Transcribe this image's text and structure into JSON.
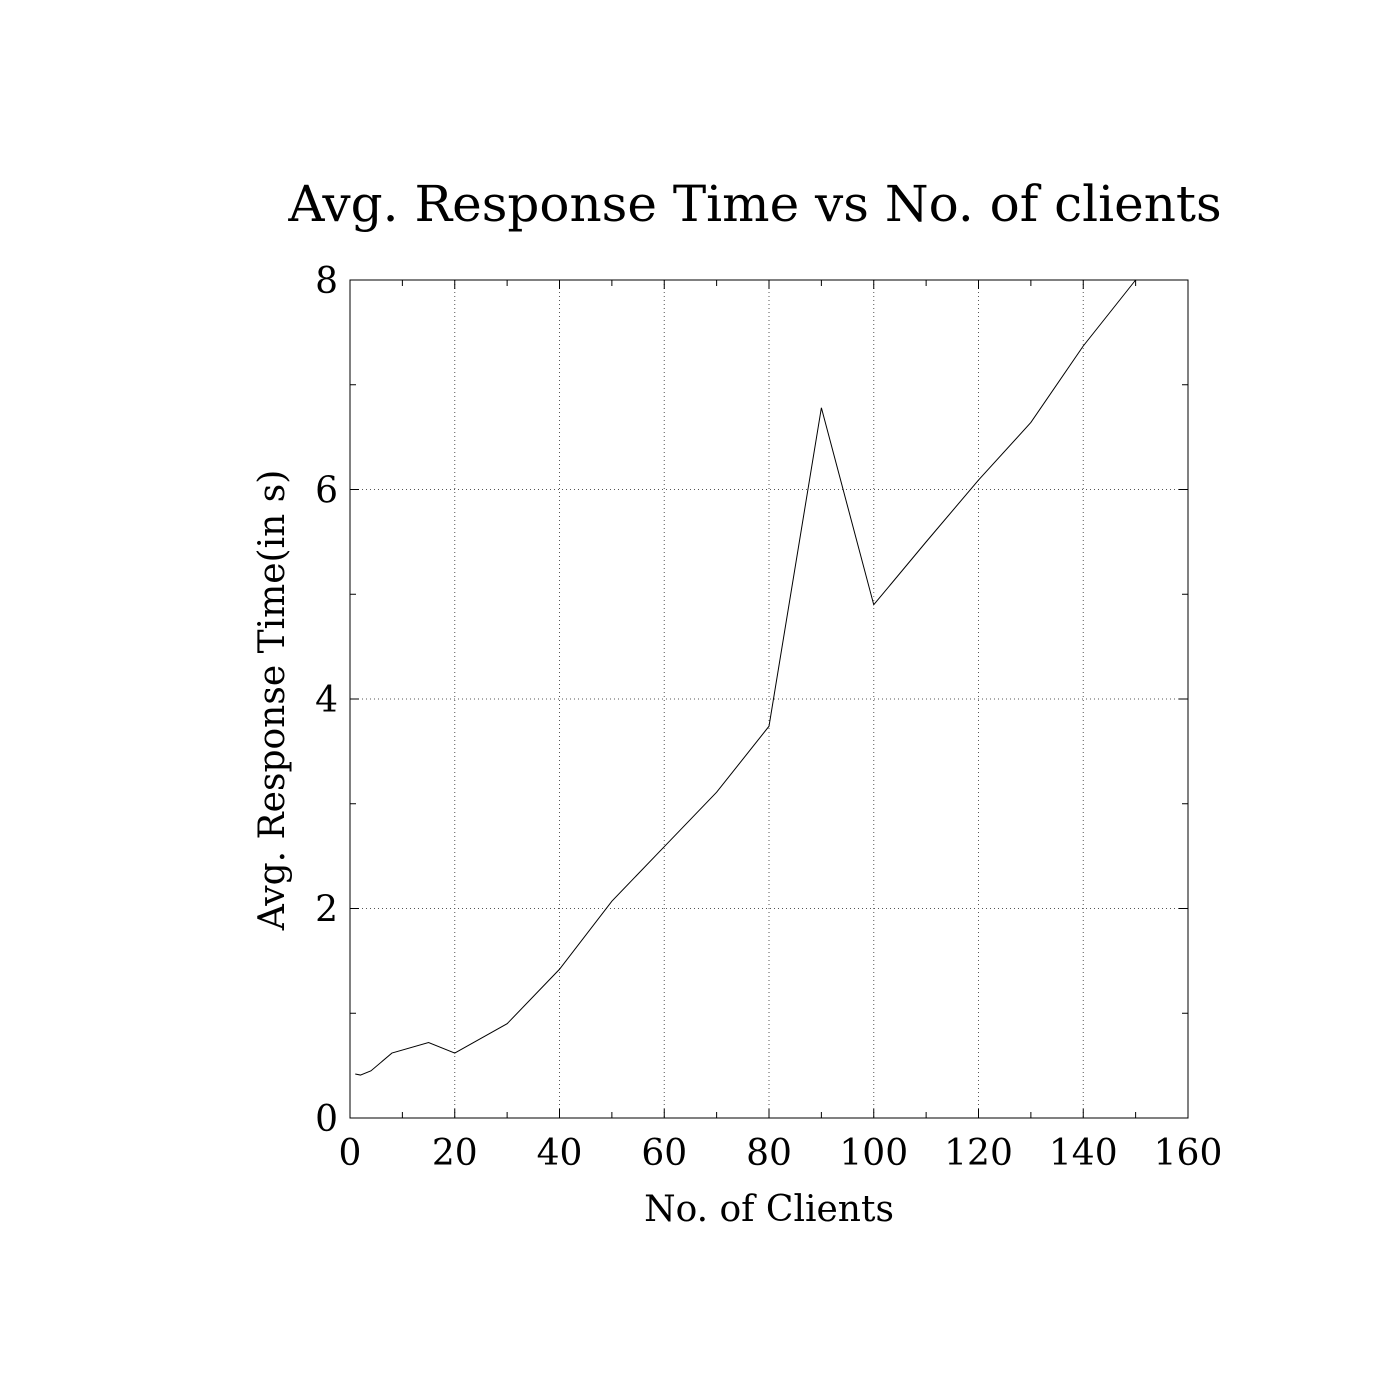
{
  "chart_data": {
    "type": "line",
    "title": "Avg. Response Time vs No. of clients",
    "xlabel": "No. of Clients",
    "ylabel": "Avg. Response Time(in s)",
    "xlim": [
      0,
      160
    ],
    "ylim": [
      0,
      8
    ],
    "xticks": [
      0,
      20,
      40,
      60,
      80,
      100,
      120,
      140,
      160
    ],
    "yticks": [
      0,
      2,
      4,
      6,
      8
    ],
    "xtick_labels": [
      "0",
      "20",
      "40",
      "60",
      "80",
      "100",
      "120",
      "140",
      "160"
    ],
    "ytick_labels": [
      "0",
      "2",
      "4",
      "6",
      "8"
    ],
    "grid": true,
    "series": [
      {
        "x": [
          1,
          2,
          4,
          8,
          15,
          20,
          30,
          40,
          50,
          60,
          70,
          80,
          90,
          100,
          110,
          120,
          130,
          140,
          150
        ],
        "y": [
          0.42,
          0.41,
          0.45,
          0.62,
          0.72,
          0.62,
          0.9,
          1.42,
          2.07,
          2.59,
          3.11,
          3.74,
          6.78,
          4.9,
          5.5,
          6.09,
          6.64,
          7.37,
          8.0
        ]
      }
    ],
    "colors": {
      "line": "#000000",
      "grid": "#555555",
      "frame": "#000000"
    }
  }
}
